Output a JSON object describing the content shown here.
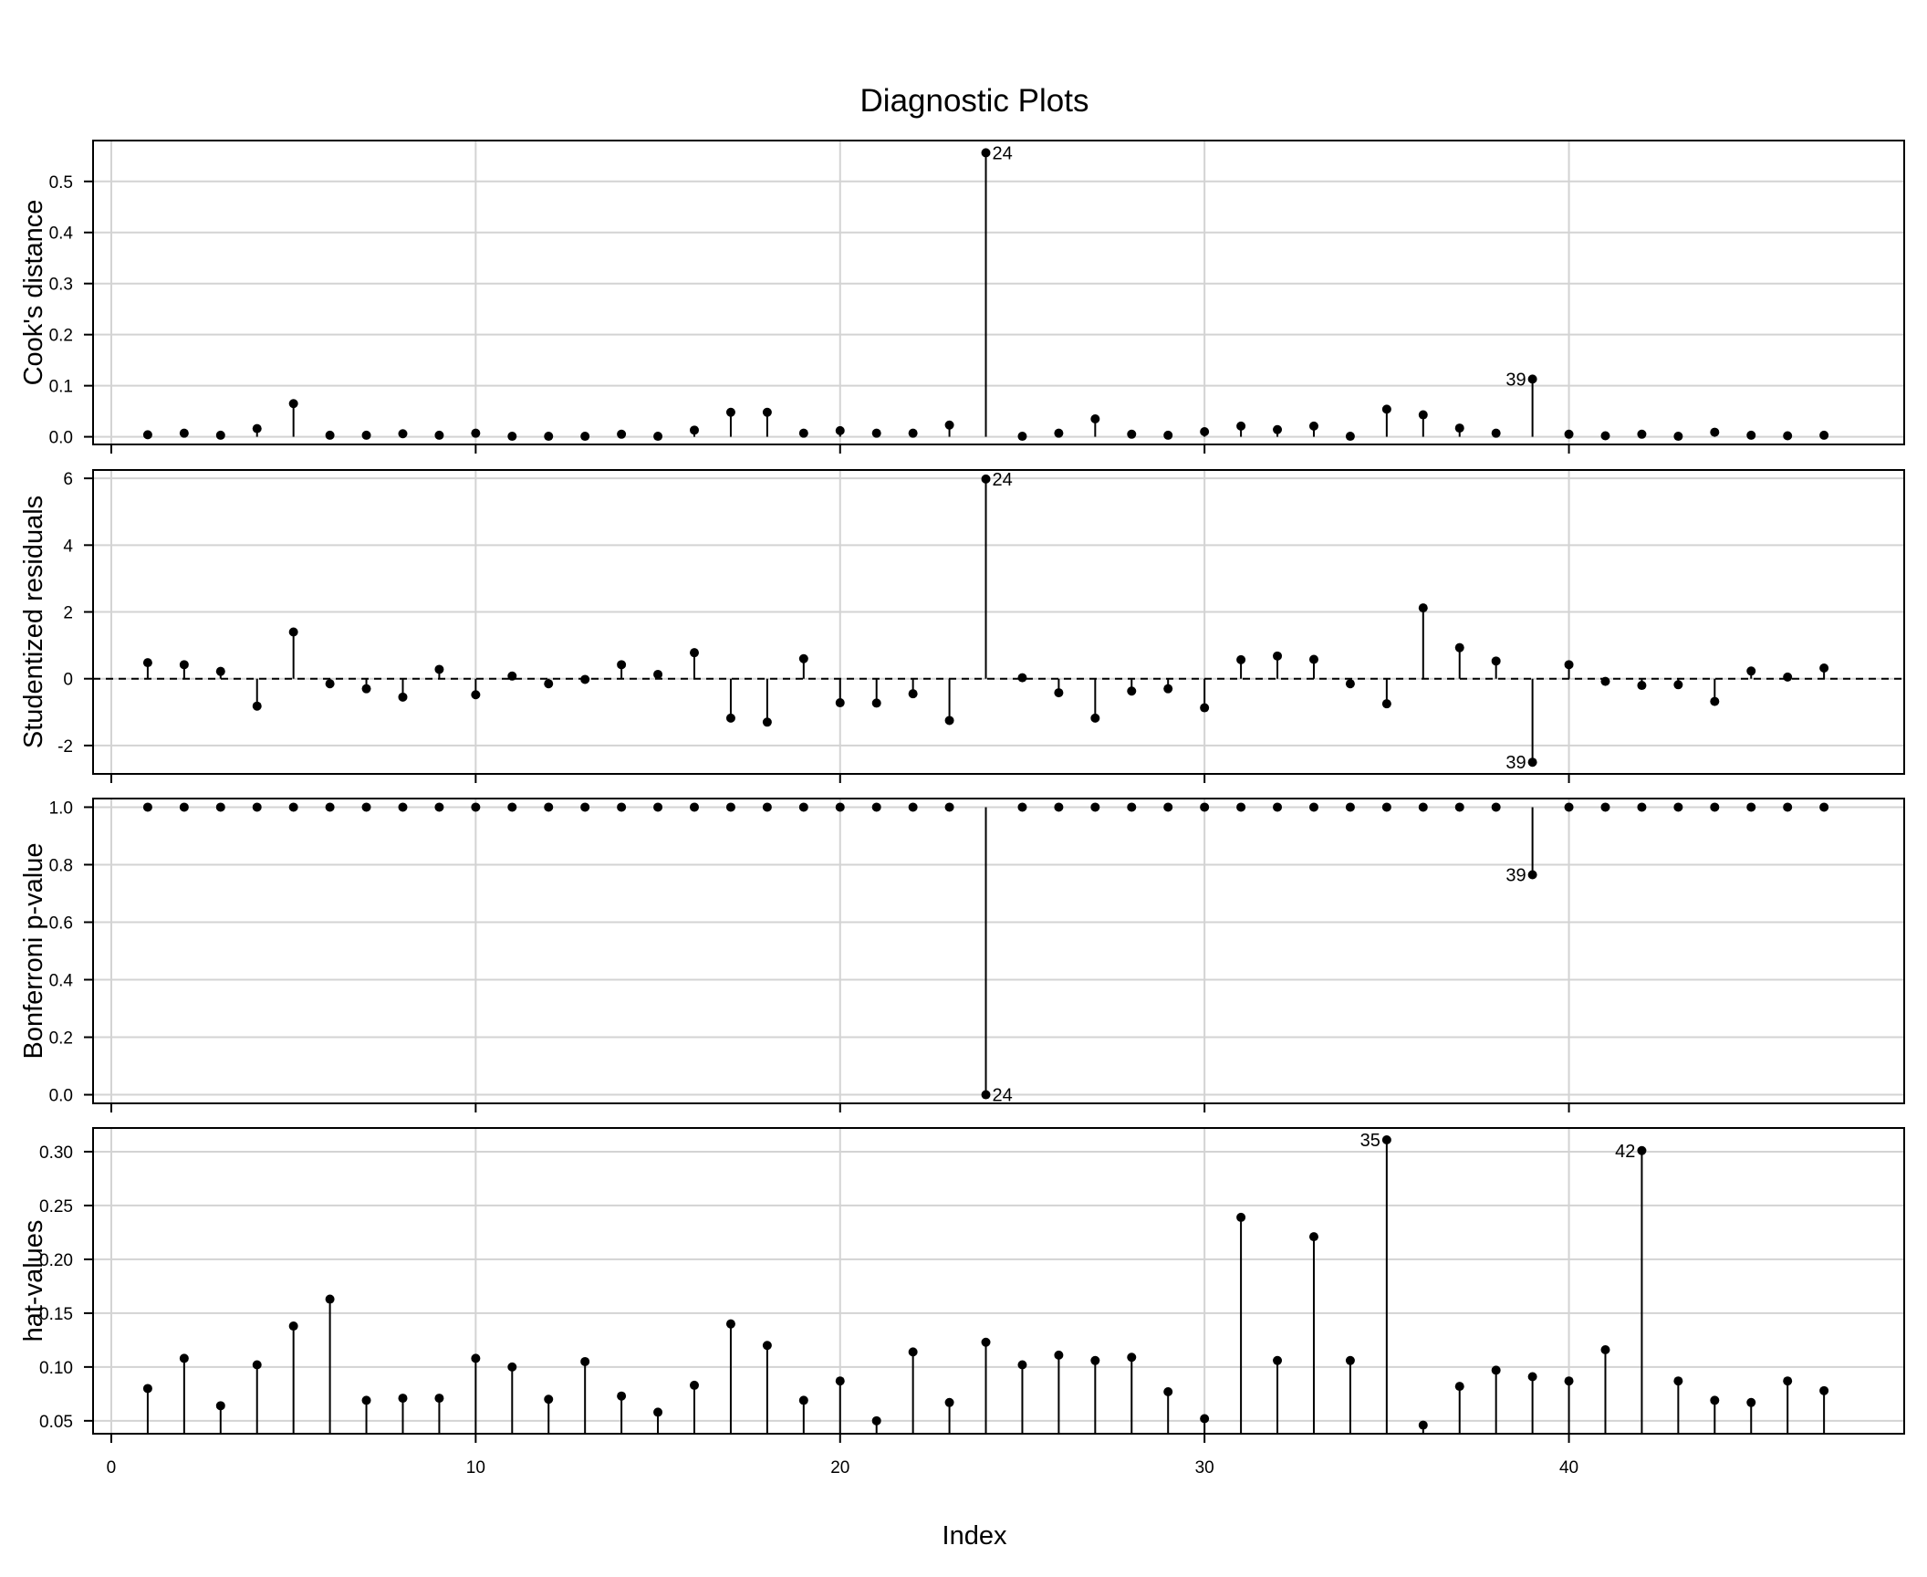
{
  "figure": {
    "title": "Diagnostic Plots",
    "xlabel": "Index",
    "background": "#ffffff",
    "grid_color": "#d3d3d3",
    "mark_color": "#000000"
  },
  "chart_data": {
    "type": "scatter",
    "style": "stem (needle) plot with points",
    "x": [
      1,
      2,
      3,
      4,
      5,
      6,
      7,
      8,
      9,
      10,
      11,
      12,
      13,
      14,
      15,
      16,
      17,
      18,
      19,
      20,
      21,
      22,
      23,
      24,
      25,
      26,
      27,
      28,
      29,
      30,
      31,
      32,
      33,
      34,
      35,
      36,
      37,
      38,
      39,
      40,
      41,
      42,
      43,
      44,
      45,
      46,
      47
    ],
    "xlim": [
      -0.5,
      49.2
    ],
    "x_ticks": [
      0,
      10,
      20,
      30,
      40
    ],
    "grid": true,
    "panels": [
      {
        "ylabel": "Cook's distance",
        "ylim": [
          -0.015,
          0.58
        ],
        "y_ticks": [
          0.0,
          0.1,
          0.2,
          0.3,
          0.4,
          0.5
        ],
        "y_tick_labels": [
          "0.0",
          "0.1",
          "0.2",
          "0.3",
          "0.4",
          "0.5"
        ],
        "baseline": 0,
        "values": [
          0.004,
          0.007,
          0.003,
          0.016,
          0.065,
          0.003,
          0.003,
          0.006,
          0.003,
          0.007,
          0.001,
          0.001,
          0.001,
          0.005,
          0.001,
          0.013,
          0.048,
          0.048,
          0.007,
          0.012,
          0.007,
          0.007,
          0.023,
          0.556,
          0.001,
          0.007,
          0.035,
          0.005,
          0.003,
          0.01,
          0.021,
          0.014,
          0.021,
          0.001,
          0.054,
          0.043,
          0.017,
          0.007,
          0.113,
          0.005,
          0.002,
          0.005,
          0.001,
          0.009,
          0.003,
          0.002,
          0.003
        ],
        "labeled_points": [
          {
            "index": 24,
            "label": "24",
            "side": "right"
          },
          {
            "index": 39,
            "label": "39",
            "side": "left"
          }
        ]
      },
      {
        "ylabel": "Studentized residuals",
        "ylim": [
          -2.85,
          6.25
        ],
        "y_ticks": [
          -2,
          0,
          2,
          4,
          6
        ],
        "y_tick_labels": [
          "-2",
          "0",
          "2",
          "4",
          "6"
        ],
        "baseline": 0,
        "reference_line": 0,
        "values": [
          0.48,
          0.42,
          0.22,
          -0.82,
          1.4,
          -0.15,
          -0.3,
          -0.55,
          0.28,
          -0.48,
          0.08,
          -0.15,
          -0.02,
          0.42,
          0.13,
          0.78,
          -1.18,
          -1.3,
          0.6,
          -0.72,
          -0.73,
          -0.45,
          -1.25,
          5.98,
          0.03,
          -0.42,
          -1.18,
          -0.37,
          -0.3,
          -0.87,
          0.57,
          0.68,
          0.58,
          -0.15,
          -0.75,
          2.12,
          0.93,
          0.53,
          -2.5,
          0.42,
          -0.08,
          -0.2,
          -0.18,
          -0.68,
          0.23,
          0.05,
          0.32
        ],
        "labeled_points": [
          {
            "index": 24,
            "label": "24",
            "side": "right"
          },
          {
            "index": 39,
            "label": "39",
            "side": "left"
          }
        ]
      },
      {
        "ylabel": "Bonferroni p-value",
        "ylim": [
          -0.03,
          1.03
        ],
        "y_ticks": [
          0.0,
          0.2,
          0.4,
          0.6,
          0.8,
          1.0
        ],
        "y_tick_labels": [
          "0.0",
          "0.2",
          "0.4",
          "0.6",
          "0.8",
          "1.0"
        ],
        "baseline": 1,
        "values": [
          1,
          1,
          1,
          1,
          1,
          1,
          1,
          1,
          1,
          1,
          1,
          1,
          1,
          1,
          1,
          1,
          1,
          1,
          1,
          1,
          1,
          1,
          1,
          0.0,
          1,
          1,
          1,
          1,
          1,
          1,
          1,
          1,
          1,
          1,
          1,
          1,
          1,
          1,
          0.765,
          1,
          1,
          1,
          1,
          1,
          1,
          1,
          1
        ],
        "labeled_points": [
          {
            "index": 24,
            "label": "24",
            "side": "right"
          },
          {
            "index": 39,
            "label": "39",
            "side": "left"
          }
        ]
      },
      {
        "ylabel": "hat-values",
        "ylim": [
          0.038,
          0.322
        ],
        "y_ticks": [
          0.05,
          0.1,
          0.15,
          0.2,
          0.25,
          0.3
        ],
        "y_tick_labels": [
          "0.05",
          "0.10",
          "0.15",
          "0.20",
          "0.25",
          "0.30"
        ],
        "baseline": 0,
        "values": [
          0.08,
          0.108,
          0.064,
          0.102,
          0.138,
          0.163,
          0.069,
          0.071,
          0.071,
          0.108,
          0.1,
          0.07,
          0.105,
          0.073,
          0.058,
          0.083,
          0.14,
          0.12,
          0.069,
          0.087,
          0.05,
          0.114,
          0.067,
          0.123,
          0.102,
          0.111,
          0.106,
          0.109,
          0.077,
          0.052,
          0.239,
          0.106,
          0.221,
          0.106,
          0.311,
          0.046,
          0.082,
          0.097,
          0.091,
          0.087,
          0.116,
          0.301,
          0.087,
          0.069,
          0.067,
          0.087,
          0.078
        ],
        "labeled_points": [
          {
            "index": 35,
            "label": "35",
            "side": "left"
          },
          {
            "index": 42,
            "label": "42",
            "side": "left"
          }
        ]
      }
    ]
  }
}
